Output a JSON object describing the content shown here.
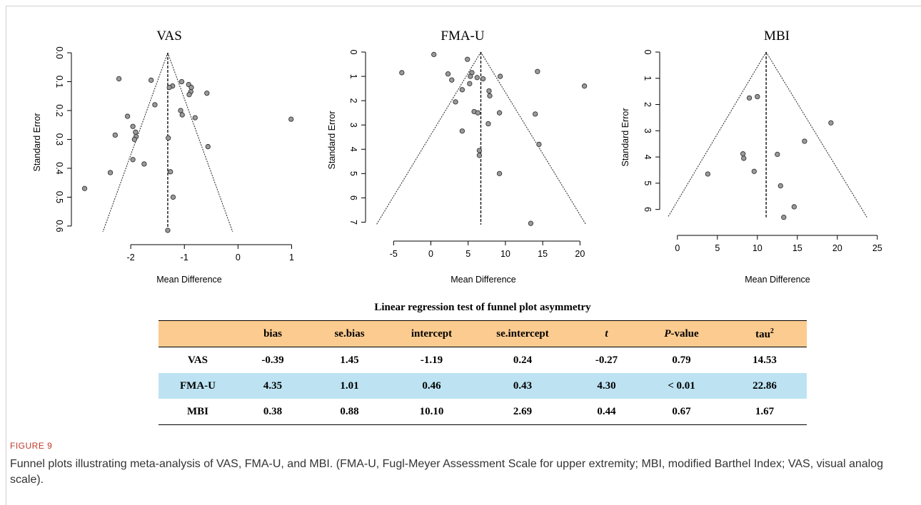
{
  "chart_data": [
    {
      "type": "scatter",
      "title": "VAS",
      "xlabel": "Mean Difference",
      "ylabel": "Standard Error",
      "x_ticks": [
        -2,
        -1,
        0,
        1
      ],
      "y_ticks": [
        "0.0",
        "0.1",
        "0.2",
        "0.3",
        "0.4",
        "0.5",
        "0.6"
      ],
      "xlim": [
        -3.0,
        1.1
      ],
      "ylim": [
        0.0,
        0.62
      ],
      "center": -1.31,
      "funnel": {
        "apex_y": 0.0,
        "base_y": 0.62,
        "base_left": -2.52,
        "base_right": -0.1
      },
      "points": [
        [
          -2.22,
          0.09
        ],
        [
          -1.62,
          0.095
        ],
        [
          -1.22,
          0.115
        ],
        [
          -1.28,
          0.12
        ],
        [
          -1.05,
          0.1
        ],
        [
          -0.92,
          0.11
        ],
        [
          -0.87,
          0.12
        ],
        [
          -0.88,
          0.135
        ],
        [
          -0.91,
          0.145
        ],
        [
          -0.58,
          0.14
        ],
        [
          -1.55,
          0.18
        ],
        [
          -1.07,
          0.2
        ],
        [
          -1.04,
          0.215
        ],
        [
          -0.8,
          0.225
        ],
        [
          -2.06,
          0.22
        ],
        [
          -1.96,
          0.255
        ],
        [
          -1.91,
          0.275
        ],
        [
          -2.29,
          0.285
        ],
        [
          -1.9,
          0.29
        ],
        [
          -1.93,
          0.3
        ],
        [
          -1.3,
          0.295
        ],
        [
          -0.56,
          0.325
        ],
        [
          -1.96,
          0.37
        ],
        [
          -1.75,
          0.385
        ],
        [
          -2.38,
          0.415
        ],
        [
          -1.26,
          0.412
        ],
        [
          -2.86,
          0.47
        ],
        [
          -1.21,
          0.5
        ],
        [
          -1.31,
          0.615
        ],
        [
          0.99,
          0.23
        ]
      ]
    },
    {
      "type": "scatter",
      "title": "FMA-U",
      "xlabel": "Mean Difference",
      "ylabel": "Standard Error",
      "x_ticks": [
        -5,
        0,
        5,
        10,
        15,
        20
      ],
      "y_ticks": [
        "0",
        "1",
        "2",
        "3",
        "4",
        "5",
        "6",
        "7"
      ],
      "xlim": [
        -8,
        21.5
      ],
      "ylim": [
        0,
        7.25
      ],
      "center": 6.7,
      "funnel": {
        "apex_y": 0.0,
        "base_y": 7.1,
        "base_left": -7.3,
        "base_right": 20.8
      },
      "points": [
        [
          0.4,
          0.1
        ],
        [
          4.9,
          0.3
        ],
        [
          -3.9,
          0.85
        ],
        [
          2.3,
          0.9
        ],
        [
          5.5,
          0.85
        ],
        [
          5.3,
          1.0
        ],
        [
          6.2,
          1.05
        ],
        [
          7.0,
          1.1
        ],
        [
          9.3,
          1.0
        ],
        [
          14.3,
          0.8
        ],
        [
          20.6,
          1.4
        ],
        [
          2.8,
          1.15
        ],
        [
          5.2,
          1.3
        ],
        [
          4.2,
          1.55
        ],
        [
          7.8,
          1.6
        ],
        [
          7.9,
          1.8
        ],
        [
          3.3,
          2.05
        ],
        [
          5.8,
          2.45
        ],
        [
          6.3,
          2.5
        ],
        [
          9.2,
          2.5
        ],
        [
          14.0,
          2.55
        ],
        [
          7.7,
          2.95
        ],
        [
          4.2,
          3.25
        ],
        [
          14.5,
          3.8
        ],
        [
          6.5,
          4.05
        ],
        [
          6.5,
          4.25
        ],
        [
          9.2,
          5.0
        ],
        [
          13.4,
          7.05
        ]
      ]
    },
    {
      "type": "scatter",
      "title": "MBI",
      "xlabel": "Mean Difference",
      "ylabel": "Standard Error",
      "x_ticks": [
        0,
        5,
        10,
        15,
        20,
        25
      ],
      "y_ticks": [
        "0",
        "1",
        "2",
        "3",
        "4",
        "5",
        "6"
      ],
      "xlim": [
        -1.5,
        26
      ],
      "ylim": [
        0,
        6.5
      ],
      "center": 11.1,
      "funnel": {
        "apex_y": 0.0,
        "base_y": 6.3,
        "base_left": -1.2,
        "base_right": 23.7
      },
      "points": [
        [
          9.0,
          1.75
        ],
        [
          10.0,
          1.7
        ],
        [
          19.2,
          2.7
        ],
        [
          15.9,
          3.4
        ],
        [
          8.2,
          3.88
        ],
        [
          12.5,
          3.9
        ],
        [
          8.3,
          4.05
        ],
        [
          9.6,
          4.55
        ],
        [
          3.8,
          4.65
        ],
        [
          12.9,
          5.1
        ],
        [
          14.6,
          5.9
        ],
        [
          13.3,
          6.3
        ]
      ]
    }
  ],
  "table": {
    "title": "Linear regression test of funnel plot asymmetry",
    "headers": [
      "",
      "bias",
      "se.bias",
      "intercept",
      "se.intercept",
      "t",
      "P-value",
      "tau2"
    ],
    "rows": [
      {
        "label": "VAS",
        "values": [
          "-0.39",
          "1.45",
          "-1.19",
          "0.24",
          "-0.27",
          "0.79",
          "14.53"
        ],
        "highlight": false
      },
      {
        "label": "FMA-U",
        "values": [
          "4.35",
          "1.01",
          "0.46",
          "0.43",
          "4.30",
          "< 0.01",
          "22.86"
        ],
        "highlight": true
      },
      {
        "label": "MBI",
        "values": [
          "0.38",
          "0.88",
          "10.10",
          "2.69",
          "0.44",
          "0.67",
          "1.67"
        ],
        "highlight": false
      }
    ],
    "colors": {
      "header_bg": "#fccb8f",
      "highlight_bg": "#bde3f3"
    }
  },
  "figure": {
    "label": "FIGURE 9",
    "caption": "Funnel plots illustrating meta-analysis of VAS, FMA-U, and MBI. (FMA-U, Fugl-Meyer Assessment Scale for upper extremity; MBI, modified Barthel Index; VAS, visual analog scale).",
    "label_color": "#c0392b"
  }
}
